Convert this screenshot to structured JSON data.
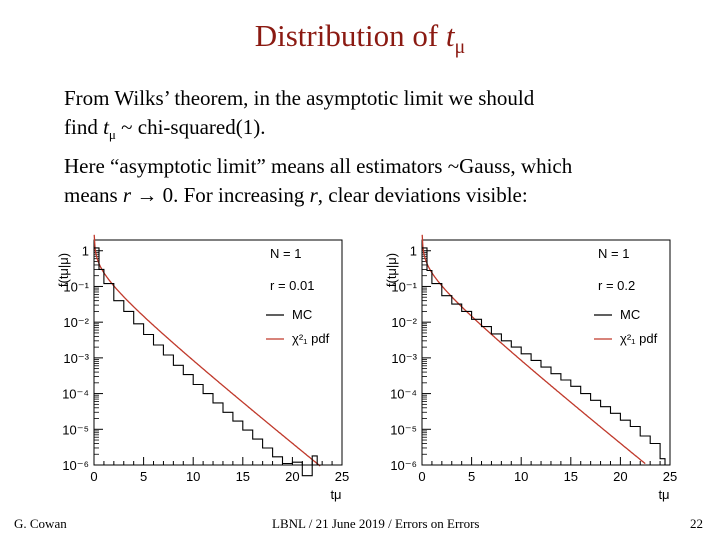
{
  "slide": {
    "title_main": "Distribution of ",
    "title_var": "t",
    "title_sub": "μ",
    "para1_line1": "From Wilks’ theorem, in the asymptotic limit we should",
    "para1_line2_a": "find ",
    "para1_line2_var": "t",
    "para1_line2_sub": "μ",
    "para1_line2_b": " ~ chi-squared(1).",
    "para2_line1": "Here “asymptotic limit” means all estimators ~Gauss, which",
    "para2_line2_a": "means ",
    "para2_line2_r1": "r",
    "para2_line2_b": " → 0.  For increasing ",
    "para2_line2_r2": "r",
    "para2_line2_c": ", clear deviations visible:"
  },
  "footer": {
    "author": "G. Cowan",
    "center": "LBNL / 21 June 2019 / Errors on Errors",
    "page": "22"
  },
  "colors": {
    "title": "#8b1a12",
    "mc": "#000000",
    "pdf": "#c0392b"
  },
  "chart_data": [
    {
      "type": "line",
      "ylabel": "f(tμ|μ)",
      "xlabel": "tμ",
      "y_scale": "log",
      "xlim": [
        0,
        25
      ],
      "ylim": [
        1e-06,
        2
      ],
      "x_ticks": [
        "0",
        "5",
        "10",
        "15",
        "20",
        "25"
      ],
      "y_ticks": [
        "10⁻⁶",
        "10⁻⁵",
        "10⁻⁴",
        "10⁻³",
        "10⁻²",
        "10⁻¹",
        "1"
      ],
      "legend": {
        "lines": [
          "N = 1",
          "r = 0.01"
        ],
        "entries": [
          {
            "name": "MC",
            "color": "#000000"
          },
          {
            "name": "χ²₁ pdf",
            "color": "#c0392b"
          }
        ]
      },
      "series": [
        {
          "name": "MC",
          "style": "histogram",
          "x": [
            0,
            0.5,
            1,
            2,
            3,
            4,
            5,
            6,
            7,
            8,
            9,
            10,
            11,
            12,
            13,
            14,
            15,
            16,
            17,
            18,
            19,
            20,
            21,
            21.5,
            22,
            22.5
          ],
          "y": [
            1.2,
            0.3,
            0.12,
            0.04,
            0.02,
            0.009,
            0.0045,
            0.0023,
            0.0012,
            0.00062,
            0.00034,
            0.00018,
            0.0001,
            5.5e-05,
            3e-05,
            1.7e-05,
            9.5e-06,
            5.3e-06,
            3e-06,
            1.7e-06,
            1.1e-06,
            1.2e-06,
            5e-07,
            3e-07,
            1.8e-06,
            1e-06
          ]
        },
        {
          "name": "χ²₁ pdf",
          "style": "curve",
          "function": "chi2_1",
          "x_range": [
            0.02,
            22.8
          ]
        }
      ]
    },
    {
      "type": "line",
      "ylabel": "f(tμ|μ)",
      "xlabel": "tμ",
      "y_scale": "log",
      "xlim": [
        0,
        25
      ],
      "ylim": [
        1e-06,
        2
      ],
      "x_ticks": [
        "0",
        "5",
        "10",
        "15",
        "20",
        "25"
      ],
      "y_ticks": [
        "10⁻⁶",
        "10⁻⁵",
        "10⁻⁴",
        "10⁻³",
        "10⁻²",
        "10⁻¹",
        "1"
      ],
      "legend": {
        "lines": [
          "N = 1",
          "r = 0.2"
        ],
        "entries": [
          {
            "name": "MC",
            "color": "#000000"
          },
          {
            "name": "χ²₁ pdf",
            "color": "#c0392b"
          }
        ]
      },
      "series": [
        {
          "name": "MC",
          "style": "histogram",
          "x": [
            0,
            0.5,
            1,
            2,
            3,
            4,
            5,
            6,
            7,
            8,
            9,
            10,
            11,
            12,
            13,
            14,
            15,
            16,
            17,
            18,
            19,
            20,
            21,
            22,
            23,
            24,
            24.5
          ],
          "y": [
            1.2,
            0.28,
            0.12,
            0.055,
            0.032,
            0.02,
            0.012,
            0.0075,
            0.0047,
            0.003,
            0.002,
            0.0013,
            0.00085,
            0.00055,
            0.00036,
            0.00024,
            0.00016,
            0.0001,
            6.5e-05,
            4.3e-05,
            2.8e-05,
            1.8e-05,
            1.2e-05,
            6.5e-06,
            4e-06,
            1.5e-06,
            1e-06
          ]
        },
        {
          "name": "χ²₁ pdf",
          "style": "curve",
          "function": "chi2_1",
          "x_range": [
            0.02,
            22.5
          ]
        }
      ]
    }
  ]
}
